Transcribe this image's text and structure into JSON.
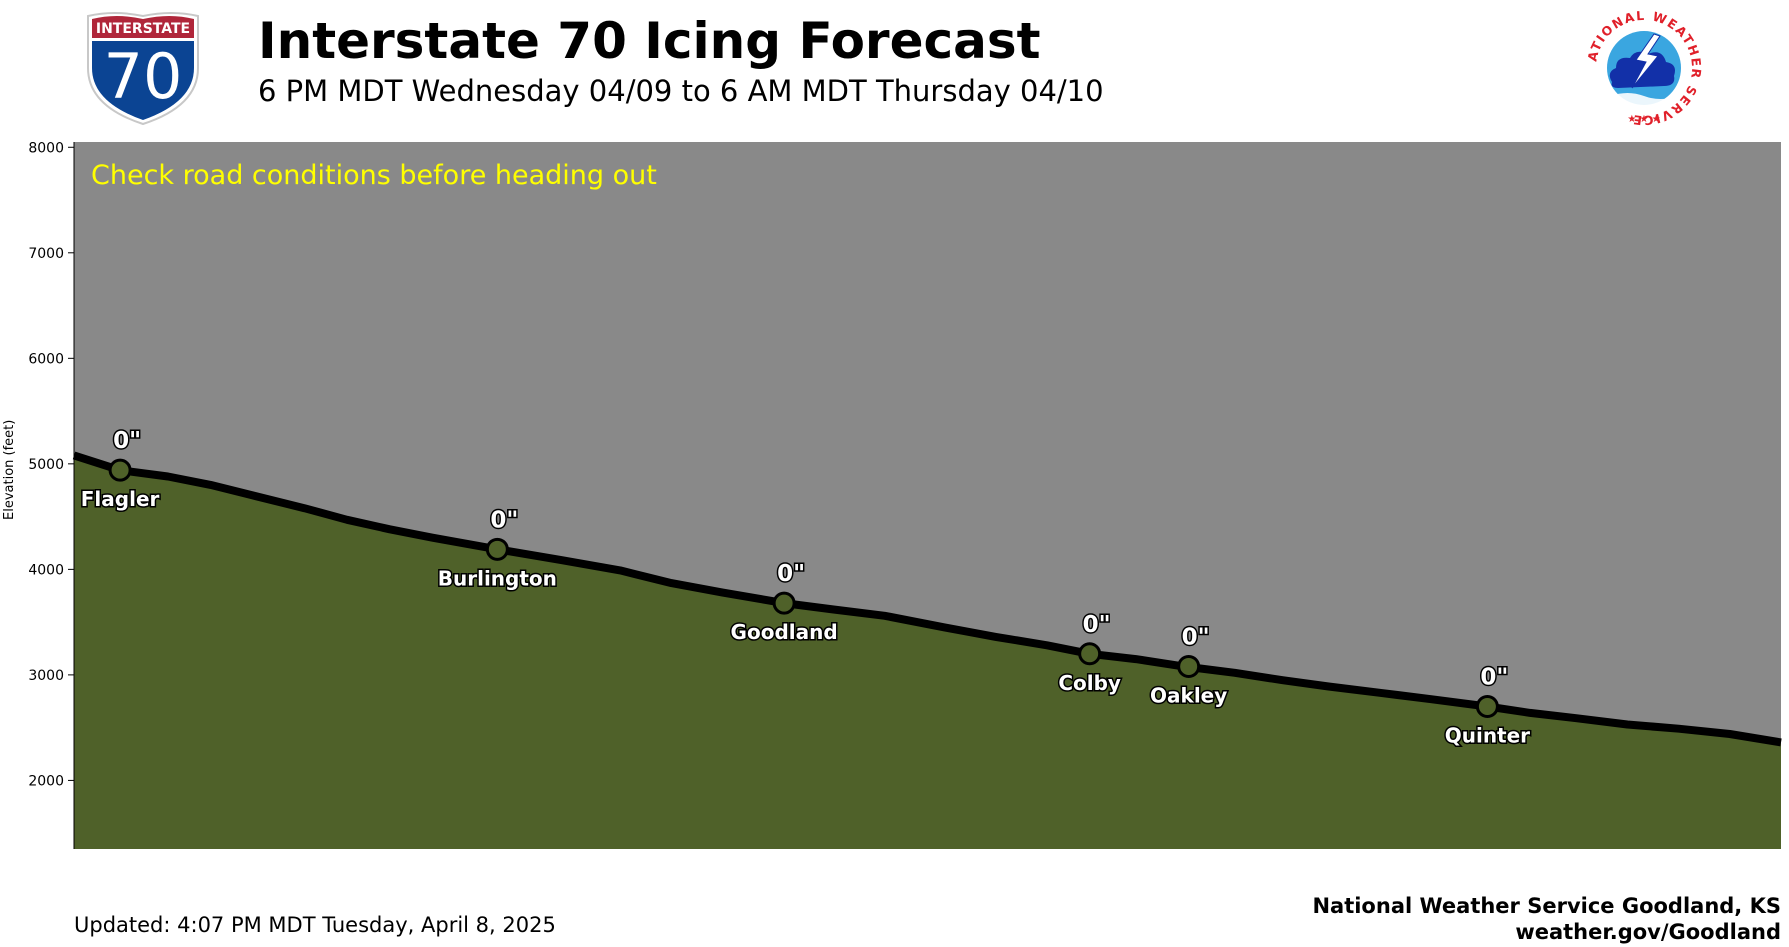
{
  "header": {
    "title": "Interstate 70 Icing Forecast",
    "subtitle": "6 PM MDT Wednesday 04/09 to 6 AM MDT Thursday 04/10"
  },
  "shield": {
    "top_text": "INTERSTATE",
    "number": "70",
    "colors": {
      "red": "#b0263a",
      "blue": "#0b4493"
    }
  },
  "nws_logo": {
    "ring_text": "NATIONAL WEATHER SERVICE",
    "colors": {
      "red": "#e0202a",
      "blue": "#1230a8",
      "sky": "#3aa6e0"
    }
  },
  "annotation": "Check road conditions before heading out",
  "footer": {
    "updated": "Updated: 4:07 PM MDT Tuesday, April 8, 2025",
    "credit_line1": "National Weather Service Goodland, KS",
    "credit_line2": "weather.gov/Goodland"
  },
  "chart_data": {
    "type": "area",
    "ylabel": "Elevation (feet)",
    "xlabel": "",
    "ylim": [
      1350,
      8050
    ],
    "xlim": [
      0,
      100
    ],
    "yticks": [
      2000,
      3000,
      4000,
      5000,
      6000,
      7000,
      8000
    ],
    "grid": false,
    "colors": {
      "sky": "#898989",
      "ground": "#4f6129",
      "line": "#000000",
      "marker": "#4f6129",
      "annotation": "#ffff00"
    },
    "profile": {
      "x": [
        0,
        2.7,
        5.5,
        8,
        10.5,
        13.5,
        16,
        18.5,
        21,
        24.8,
        28.5,
        32,
        35,
        38,
        41.6,
        44.5,
        47.5,
        51,
        54,
        57,
        59.5,
        62.2,
        65,
        68,
        70.8,
        73.5,
        76.5,
        79.5,
        82.8,
        85.3,
        88,
        91,
        94,
        97,
        100
      ],
      "y": [
        5080,
        4940,
        4880,
        4800,
        4700,
        4580,
        4470,
        4380,
        4300,
        4190,
        4090,
        3990,
        3870,
        3780,
        3680,
        3620,
        3560,
        3450,
        3360,
        3280,
        3200,
        3150,
        3080,
        3020,
        2950,
        2890,
        2830,
        2770,
        2700,
        2640,
        2590,
        2530,
        2490,
        2440,
        2360
      ]
    },
    "locations": [
      {
        "name": "Flagler",
        "x": 2.7,
        "elevation": 4940,
        "ice": "0\""
      },
      {
        "name": "Burlington",
        "x": 24.8,
        "elevation": 4190,
        "ice": "0\""
      },
      {
        "name": "Goodland",
        "x": 41.6,
        "elevation": 3680,
        "ice": "0\""
      },
      {
        "name": "Colby",
        "x": 59.5,
        "elevation": 3200,
        "ice": "0\""
      },
      {
        "name": "Oakley",
        "x": 65.3,
        "elevation": 3080,
        "ice": "0\""
      },
      {
        "name": "Quinter",
        "x": 82.8,
        "elevation": 2700,
        "ice": "0\""
      }
    ]
  }
}
